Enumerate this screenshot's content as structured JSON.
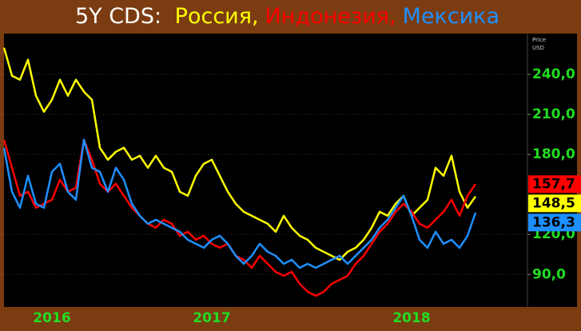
{
  "chart_data": {
    "type": "line",
    "title": "5Y CDS:",
    "y_label": [
      "Price",
      "USD"
    ],
    "categories": [
      null,
      null,
      null,
      null,
      null,
      null,
      "2016",
      null,
      null,
      null,
      null,
      null,
      null,
      null,
      null,
      null,
      null,
      null,
      null,
      null,
      null,
      null,
      null,
      null,
      null,
      null,
      "2017",
      null,
      null,
      null,
      null,
      null,
      null,
      null,
      null,
      null,
      null,
      null,
      null,
      null,
      null,
      null,
      null,
      null,
      null,
      null,
      null,
      null,
      null,
      null,
      null,
      "2018",
      null,
      null,
      null,
      null,
      null,
      null,
      null,
      null
    ],
    "series": [
      {
        "name": "Россия,",
        "color": "#ffff00",
        "last_label": "148,5",
        "values": [
          260,
          239,
          236,
          251,
          224,
          212,
          221,
          236,
          224,
          236,
          227,
          221,
          185,
          176,
          182,
          185,
          176,
          179,
          170,
          179,
          170,
          167,
          152,
          149,
          164,
          173,
          176,
          164,
          152,
          143,
          137,
          134,
          131,
          128,
          122,
          134,
          125,
          119,
          116,
          110,
          107,
          104,
          101,
          107,
          110,
          116,
          125,
          137,
          134,
          143,
          149,
          134,
          140,
          146,
          170,
          164,
          179,
          152,
          140,
          148.5
        ]
      },
      {
        "name": "Индонезия,",
        "color": "#ff0000",
        "last_label": "157,7",
        "values": [
          191,
          170,
          149,
          152,
          140,
          143,
          146,
          161,
          152,
          155,
          191,
          176,
          158,
          152,
          158,
          149,
          140,
          134,
          128,
          125,
          131,
          128,
          119,
          122,
          116,
          119,
          113,
          110,
          113,
          104,
          101,
          95,
          104,
          98,
          92,
          89,
          92,
          83,
          77,
          74,
          77,
          83,
          86,
          89,
          98,
          104,
          113,
          122,
          128,
          137,
          143,
          137,
          128,
          125,
          131,
          137,
          146,
          134,
          149,
          157.7
        ]
      },
      {
        "name": "Мексика",
        "color": "#1e8fff",
        "last_label": "136,3",
        "values": [
          185,
          152,
          140,
          164,
          143,
          140,
          167,
          173,
          152,
          146,
          191,
          170,
          167,
          152,
          170,
          161,
          143,
          134,
          128,
          131,
          128,
          125,
          122,
          116,
          113,
          110,
          116,
          119,
          113,
          104,
          98,
          104,
          113,
          107,
          104,
          98,
          101,
          95,
          98,
          95,
          98,
          101,
          104,
          98,
          104,
          110,
          116,
          125,
          131,
          140,
          149,
          134,
          116,
          110,
          122,
          113,
          116,
          110,
          119,
          136.3
        ]
      }
    ],
    "ylim": [
      68,
      267
    ],
    "yticks": [
      {
        "value": 90,
        "label": "90,0"
      },
      {
        "value": 120,
        "label": "120,0"
      },
      {
        "value": 180,
        "label": "180,0"
      },
      {
        "value": 210,
        "label": "210,0"
      },
      {
        "value": 240,
        "label": "240,0"
      }
    ],
    "grid": true
  }
}
